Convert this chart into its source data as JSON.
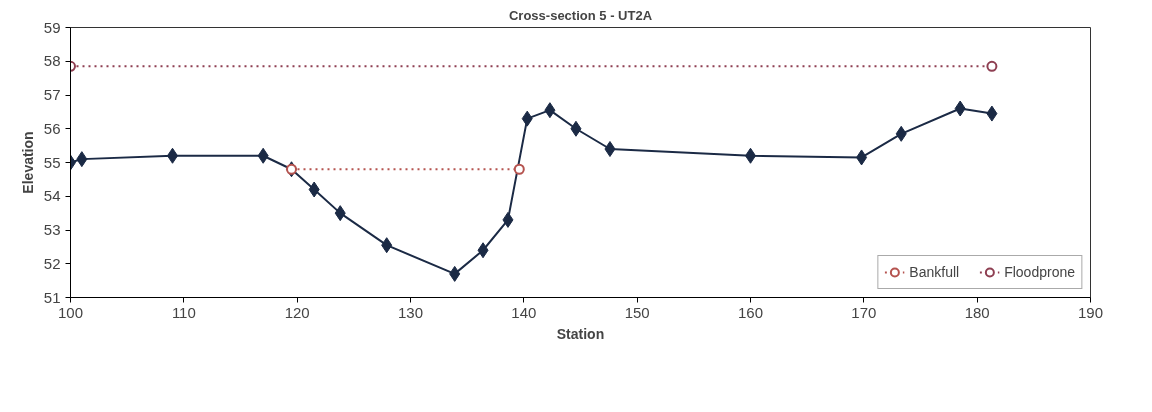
{
  "chart_data": {
    "type": "line",
    "title": "Cross-section 5 - UT2A",
    "xlabel": "Station",
    "ylabel": "Elevation",
    "xlim": [
      100,
      190
    ],
    "xticks": [
      100,
      110,
      120,
      130,
      140,
      150,
      160,
      170,
      180,
      190
    ],
    "ylim": [
      51,
      59
    ],
    "yticks": [
      51,
      52,
      53,
      54,
      55,
      56,
      57,
      58,
      59
    ],
    "grid": false,
    "legend": "bottom right",
    "series": [
      {
        "color": "#1b2a45",
        "marker": "diamond",
        "line_style": "solid",
        "x": [
          100,
          101,
          109,
          117,
          119.5,
          121.5,
          123.8,
          127.9,
          133.9,
          136.4,
          138.6,
          140.3,
          142.3,
          144.6,
          147.6,
          160,
          169.8,
          173.3,
          178.5,
          181.3
        ],
        "values": [
          55.0,
          55.1,
          55.2,
          55.2,
          54.8,
          54.2,
          53.5,
          52.55,
          51.7,
          52.4,
          53.3,
          56.3,
          56.55,
          56.0,
          55.4,
          55.2,
          55.15,
          55.85,
          56.6,
          56.45
        ]
      },
      {
        "name": "Bankfull",
        "color": "#b5534f",
        "marker": "circle",
        "line_style": "dotted",
        "x": [
          119.5,
          139.6
        ],
        "values": [
          54.8,
          54.8
        ]
      },
      {
        "name": "Floodprone",
        "color": "#8e3f52",
        "marker": "circle",
        "line_style": "dotted",
        "x": [
          100,
          181.3
        ],
        "values": [
          57.85,
          57.85
        ]
      }
    ]
  }
}
